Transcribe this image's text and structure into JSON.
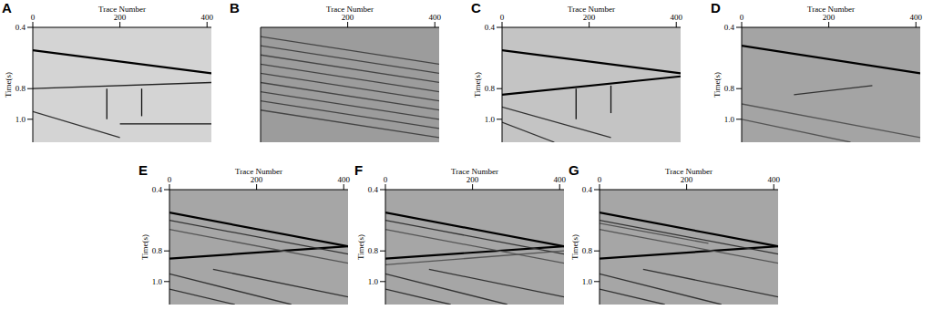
{
  "chart_data": [
    {
      "type": "line",
      "title": "A",
      "xlabel": "Trace Number",
      "ylabel": "Time(s)",
      "xlim": [
        0,
        410
      ],
      "ylim": [
        0.4,
        1.15
      ],
      "xticks": [
        0,
        200,
        400
      ],
      "yticks": [
        0.4,
        0.8,
        {
          "value": 1,
          "label": "1.0"
        }
      ],
      "grid": false,
      "series": [
        {
          "color": "#000000",
          "x": [
            0,
            410
          ],
          "values": [
            0.55,
            0.7
          ]
        },
        {
          "color": "#222222",
          "x": [
            0,
            410
          ],
          "values": [
            0.8,
            0.76
          ]
        },
        {
          "color": "#111111",
          "x": [
            200,
            410
          ],
          "values": [
            1.03,
            1.03
          ]
        },
        {
          "color": "#111111",
          "x": [
            170,
            170
          ],
          "values": [
            0.8,
            1.0
          ]
        },
        {
          "color": "#111111",
          "x": [
            250,
            250
          ],
          "values": [
            0.8,
            0.98
          ]
        },
        {
          "color": "#333333",
          "x": [
            0,
            200
          ],
          "values": [
            0.95,
            1.12
          ]
        }
      ]
    },
    {
      "type": "line",
      "title": "B",
      "xlabel": "Trace Number",
      "xlim": [
        0,
        410
      ],
      "ylim": [
        0.4,
        1.15
      ],
      "xticks": [
        200,
        400
      ],
      "tick_labels": "x",
      "grid": false,
      "series": [
        {
          "color": "#444444",
          "x": [
            0,
            410
          ],
          "values": [
            0.46,
            0.64
          ]
        },
        {
          "color": "#444444",
          "x": [
            0,
            410
          ],
          "values": [
            0.52,
            0.7
          ]
        },
        {
          "color": "#444444",
          "x": [
            0,
            410
          ],
          "values": [
            0.58,
            0.76
          ]
        },
        {
          "color": "#444444",
          "x": [
            0,
            410
          ],
          "values": [
            0.64,
            0.82
          ]
        },
        {
          "color": "#444444",
          "x": [
            0,
            410
          ],
          "values": [
            0.7,
            0.88
          ]
        },
        {
          "color": "#444444",
          "x": [
            0,
            410
          ],
          "values": [
            0.76,
            0.94
          ]
        },
        {
          "color": "#444444",
          "x": [
            0,
            410
          ],
          "values": [
            0.82,
            1.0
          ]
        },
        {
          "color": "#444444",
          "x": [
            0,
            410
          ],
          "values": [
            0.88,
            1.06
          ]
        },
        {
          "color": "#444444",
          "x": [
            0,
            410
          ],
          "values": [
            0.94,
            1.12
          ]
        }
      ]
    },
    {
      "type": "line",
      "title": "C",
      "xlabel": "Trace Number",
      "ylabel": "Time(s)",
      "xlim": [
        0,
        410
      ],
      "ylim": [
        0.4,
        1.15
      ],
      "xticks": [
        0,
        200,
        400
      ],
      "yticks": [
        0.4,
        0.8,
        {
          "value": 1,
          "label": "1.0"
        }
      ],
      "grid": false,
      "series": [
        {
          "color": "#000000",
          "x": [
            0,
            410
          ],
          "values": [
            0.55,
            0.7
          ]
        },
        {
          "color": "#000000",
          "x": [
            0,
            410
          ],
          "values": [
            0.84,
            0.72
          ]
        },
        {
          "color": "#111111",
          "x": [
            170,
            170
          ],
          "values": [
            0.8,
            1.0
          ]
        },
        {
          "color": "#111111",
          "x": [
            250,
            250
          ],
          "values": [
            0.78,
            0.96
          ]
        },
        {
          "color": "#333333",
          "x": [
            0,
            250
          ],
          "values": [
            0.92,
            1.12
          ]
        },
        {
          "color": "#333333",
          "x": [
            0,
            120
          ],
          "values": [
            1.02,
            1.15
          ]
        }
      ]
    },
    {
      "type": "line",
      "title": "D",
      "xlabel": "Trace Number",
      "ylabel": "Time(s)",
      "xlim": [
        0,
        410
      ],
      "ylim": [
        0.4,
        1.15
      ],
      "xticks": [
        0,
        200,
        400
      ],
      "yticks": [
        0.4,
        0.8,
        {
          "value": 1,
          "label": "1.0"
        }
      ],
      "grid": false,
      "series": [
        {
          "color": "#000000",
          "x": [
            0,
            410
          ],
          "values": [
            0.52,
            0.7
          ]
        },
        {
          "color": "#333333",
          "x": [
            120,
            300
          ],
          "values": [
            0.84,
            0.78
          ]
        },
        {
          "color": "#555555",
          "x": [
            0,
            410
          ],
          "values": [
            0.9,
            1.12
          ]
        },
        {
          "color": "#555555",
          "x": [
            0,
            250
          ],
          "values": [
            1.0,
            1.15
          ]
        }
      ]
    },
    {
      "type": "line",
      "title": "E",
      "xlabel": "Trace Number",
      "ylabel": "Time(s)",
      "xlim": [
        0,
        410
      ],
      "ylim": [
        0.4,
        1.15
      ],
      "xticks": [
        0,
        200,
        400
      ],
      "yticks": [
        0.4,
        0.8,
        {
          "value": 1,
          "label": "1.0"
        }
      ],
      "grid": false,
      "series": [
        {
          "color": "#000000",
          "x": [
            0,
            410
          ],
          "values": [
            0.55,
            0.77
          ]
        },
        {
          "color": "#000000",
          "x": [
            0,
            410
          ],
          "values": [
            0.85,
            0.77
          ]
        },
        {
          "color": "#333333",
          "x": [
            0,
            410
          ],
          "values": [
            0.6,
            0.82
          ]
        },
        {
          "color": "#555555",
          "x": [
            0,
            410
          ],
          "values": [
            0.66,
            0.88
          ]
        },
        {
          "color": "#333333",
          "x": [
            0,
            280
          ],
          "values": [
            0.95,
            1.15
          ]
        },
        {
          "color": "#333333",
          "x": [
            100,
            410
          ],
          "values": [
            0.92,
            1.1
          ]
        },
        {
          "color": "#333333",
          "x": [
            0,
            150
          ],
          "values": [
            1.05,
            1.15
          ]
        }
      ]
    },
    {
      "type": "line",
      "title": "F",
      "xlabel": "Trace Number",
      "ylabel": "Time(s)",
      "xlim": [
        0,
        410
      ],
      "ylim": [
        0.4,
        1.15
      ],
      "xticks": [
        0,
        200,
        400
      ],
      "yticks": [
        0.4,
        0.8,
        {
          "value": 1,
          "label": "1.0"
        }
      ],
      "grid": false,
      "series": [
        {
          "color": "#000000",
          "x": [
            0,
            410
          ],
          "values": [
            0.55,
            0.77
          ]
        },
        {
          "color": "#000000",
          "x": [
            0,
            410
          ],
          "values": [
            0.85,
            0.77
          ]
        },
        {
          "color": "#333333",
          "x": [
            0,
            410
          ],
          "values": [
            0.6,
            0.82
          ]
        },
        {
          "color": "#555555",
          "x": [
            0,
            410
          ],
          "values": [
            0.66,
            0.88
          ]
        },
        {
          "color": "#555555",
          "x": [
            0,
            410
          ],
          "values": [
            0.89,
            0.8
          ]
        },
        {
          "color": "#333333",
          "x": [
            0,
            280
          ],
          "values": [
            0.95,
            1.15
          ]
        },
        {
          "color": "#333333",
          "x": [
            100,
            410
          ],
          "values": [
            0.92,
            1.1
          ]
        },
        {
          "color": "#333333",
          "x": [
            0,
            150
          ],
          "values": [
            1.05,
            1.15
          ]
        }
      ]
    },
    {
      "type": "line",
      "title": "G",
      "xlabel": "Trace Number",
      "ylabel": "Time(s)",
      "xlim": [
        0,
        410
      ],
      "ylim": [
        0.4,
        1.15
      ],
      "xticks": [
        0,
        200,
        400
      ],
      "yticks": [
        0.4,
        0.8,
        {
          "value": 1,
          "label": "1.0"
        }
      ],
      "grid": false,
      "series": [
        {
          "color": "#000000",
          "x": [
            0,
            410
          ],
          "values": [
            0.55,
            0.77
          ]
        },
        {
          "color": "#000000",
          "x": [
            0,
            410
          ],
          "values": [
            0.85,
            0.77
          ]
        },
        {
          "color": "#333333",
          "x": [
            0,
            410
          ],
          "values": [
            0.6,
            0.82
          ]
        },
        {
          "color": "#555555",
          "x": [
            0,
            410
          ],
          "values": [
            0.66,
            0.88
          ]
        },
        {
          "color": "#555555",
          "x": [
            0,
            250
          ],
          "values": [
            0.62,
            0.75
          ]
        },
        {
          "color": "#333333",
          "x": [
            0,
            280
          ],
          "values": [
            0.95,
            1.15
          ]
        },
        {
          "color": "#333333",
          "x": [
            100,
            410
          ],
          "values": [
            0.92,
            1.1
          ]
        },
        {
          "color": "#333333",
          "x": [
            0,
            150
          ],
          "values": [
            1.05,
            1.15
          ]
        }
      ]
    }
  ]
}
